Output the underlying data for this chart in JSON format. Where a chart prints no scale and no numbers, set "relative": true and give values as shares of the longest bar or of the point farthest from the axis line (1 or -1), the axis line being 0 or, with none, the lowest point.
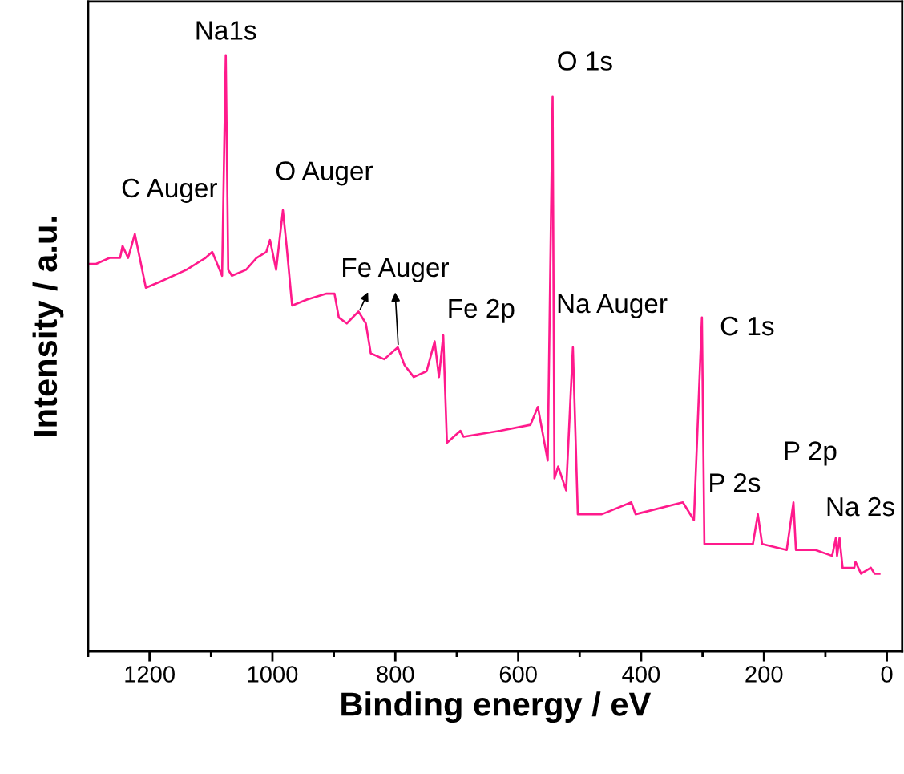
{
  "chart_data": {
    "type": "line",
    "relative": true,
    "xlabel": "Binding energy / eV",
    "ylabel": "Intensity / a.u.",
    "xlim": [
      1300,
      -25
    ],
    "xticks": [
      0,
      {
        "value": 100,
        "label": null
      },
      200,
      {
        "value": 300,
        "label": null
      },
      400,
      {
        "value": 500,
        "label": null
      },
      600,
      {
        "value": 700,
        "label": null
      },
      800,
      {
        "value": 900,
        "label": null
      },
      1000,
      {
        "value": 1100,
        "label": null
      },
      1200,
      {
        "value": 1300,
        "label": null
      }
    ],
    "grid": false,
    "legend": false,
    "marker": "none",
    "line_style": "solid",
    "series": [
      {
        "color": "#ff1a8c",
        "x": [
          1297,
          1287,
          1265,
          1248,
          1244,
          1235,
          1224,
          1218,
          1206,
          1183,
          1140,
          1109,
          1098,
          1082,
          1076,
          1072,
          1066,
          1043,
          1026,
          1010,
          1004,
          994,
          983,
          977,
          968,
          944,
          912,
          899,
          892,
          879,
          860,
          848,
          840,
          818,
          796,
          785,
          770,
          749,
          736,
          729,
          722,
          716,
          694,
          689,
          629,
          580,
          568,
          552,
          544,
          541,
          535,
          522,
          511,
          503,
          464,
          416,
          409,
          332,
          314,
          301,
          297,
          218,
          210,
          203,
          163,
          152,
          148,
          116,
          89,
          83,
          81,
          77,
          72,
          53,
          51,
          42,
          26,
          20,
          12
        ],
        "values": [
          0.65,
          0.65,
          0.66,
          0.66,
          0.68,
          0.66,
          0.7,
          0.67,
          0.61,
          0.62,
          0.64,
          0.66,
          0.67,
          0.63,
          1.0,
          0.64,
          0.63,
          0.64,
          0.66,
          0.67,
          0.69,
          0.64,
          0.74,
          0.68,
          0.58,
          0.59,
          0.6,
          0.6,
          0.56,
          0.55,
          0.57,
          0.55,
          0.5,
          0.49,
          0.51,
          0.48,
          0.46,
          0.47,
          0.52,
          0.46,
          0.53,
          0.35,
          0.37,
          0.36,
          0.37,
          0.38,
          0.41,
          0.32,
          0.93,
          0.29,
          0.31,
          0.27,
          0.51,
          0.23,
          0.23,
          0.25,
          0.23,
          0.25,
          0.22,
          0.56,
          0.18,
          0.18,
          0.23,
          0.18,
          0.17,
          0.25,
          0.17,
          0.17,
          0.16,
          0.19,
          0.16,
          0.19,
          0.14,
          0.14,
          0.15,
          0.13,
          0.14,
          0.13,
          0.13
        ]
      }
    ],
    "annotations": [
      {
        "text": "Na1s",
        "x": 1076,
        "y": 1.0
      },
      {
        "text": "O 1s",
        "x": 544,
        "y": 0.93
      },
      {
        "text": "C Auger",
        "x": 1224,
        "y": 0.7
      },
      {
        "text": "O Auger",
        "x": 983,
        "y": 0.74
      },
      "Fe Auger",
      {
        "text": "Fe 2p",
        "x": 722,
        "y": 0.53
      },
      {
        "text": "Na Auger",
        "x": 511,
        "y": 0.51
      },
      {
        "text": "C 1s",
        "x": 301,
        "y": 0.56
      },
      {
        "text": "P 2s",
        "x": 210,
        "y": 0.23
      },
      {
        "text": "P 2p",
        "x": 152,
        "y": 0.25
      },
      {
        "text": "Na 2s",
        "x": 83,
        "y": 0.19
      }
    ]
  }
}
